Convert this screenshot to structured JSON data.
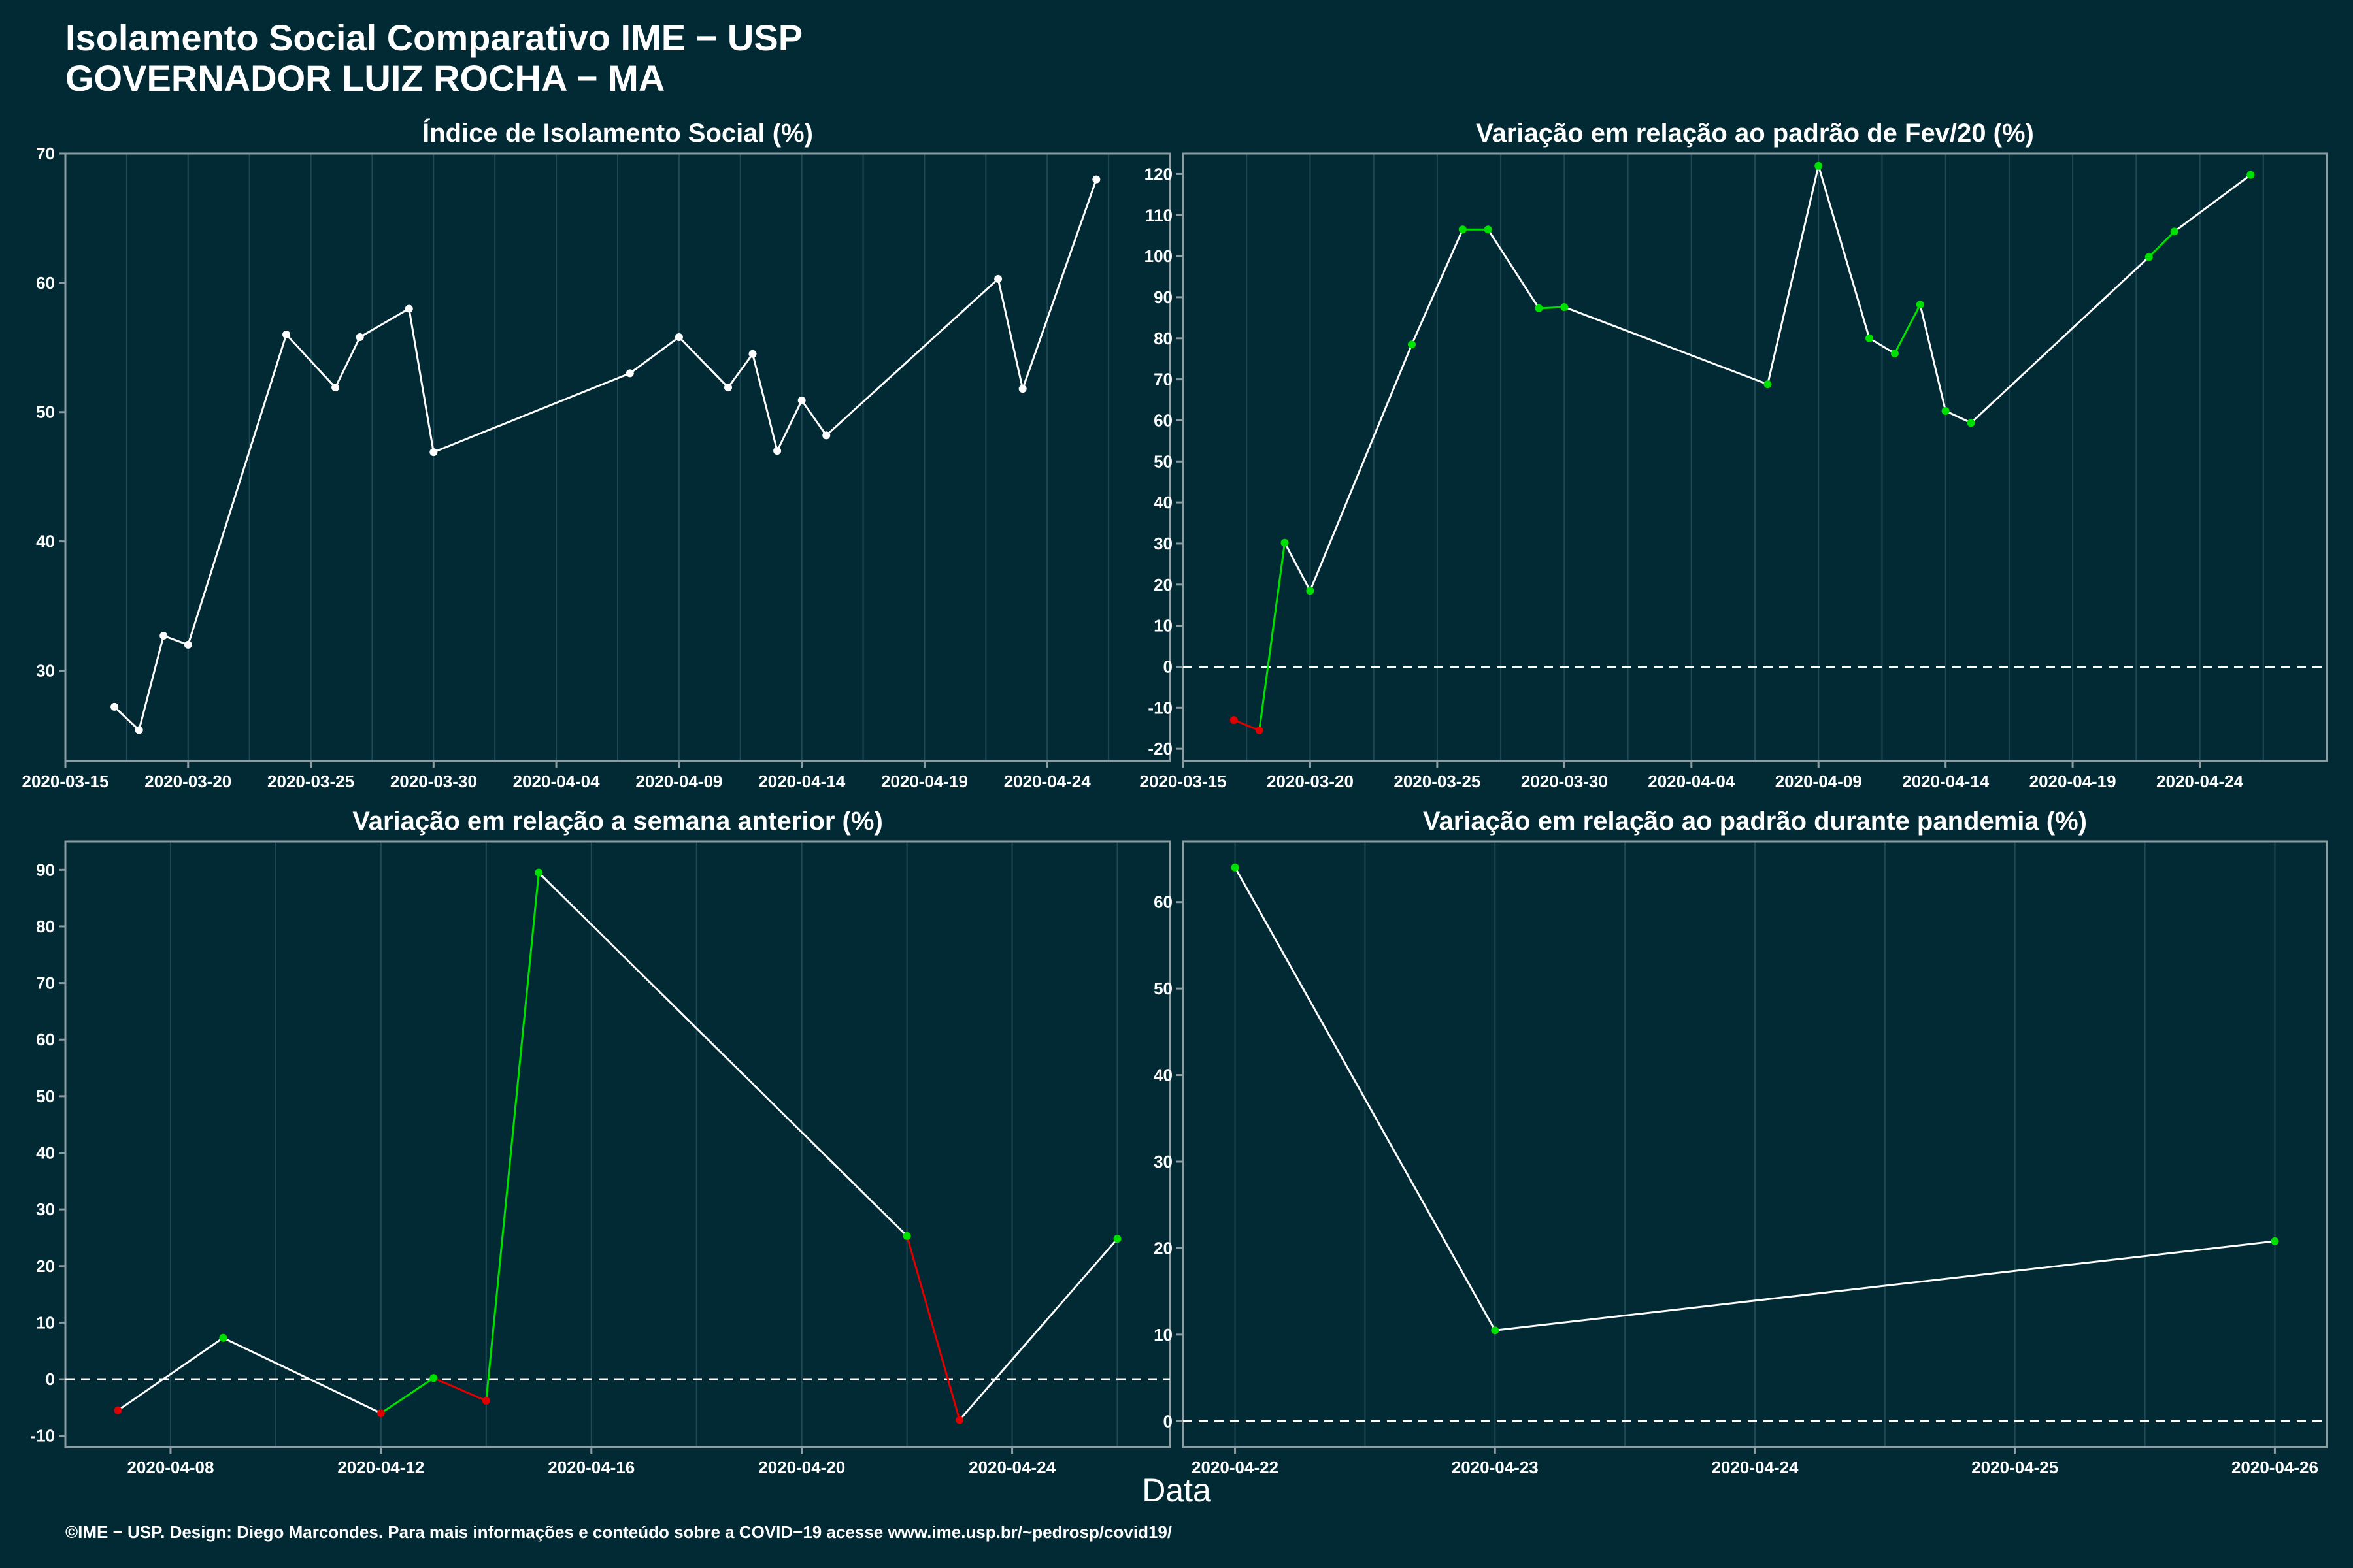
{
  "header": {
    "title_line1": "Isolamento Social Comparativo IME − USP",
    "title_line2": "GOVERNADOR LUIZ ROCHA − MA"
  },
  "x_axis_title": "Data",
  "footer": "©IME − USP. Design: Diego Marcondes. Para mais informações e conteúdo sobre a COVID−19 acesse www.ime.usp.br/~pedrosp/covid19/",
  "colors": {
    "background": "#022a35",
    "axis": "#8c9ca2",
    "line_neutral": "#ffffff",
    "increase": "#00e000",
    "decrease": "#e00000"
  },
  "chart_data": [
    {
      "type": "line",
      "title": "Índice de Isolamento Social (%)",
      "xlim": [
        "2020-03-15",
        "2020-04-29"
      ],
      "ylim": [
        23,
        70
      ],
      "x_ticks": [
        "2020-03-15",
        "2020-03-20",
        "2020-03-25",
        "2020-03-30",
        "2020-04-04",
        "2020-04-09",
        "2020-04-14",
        "2020-04-19",
        "2020-04-24"
      ],
      "y_ticks": [
        30,
        40,
        50,
        60,
        70
      ],
      "zero_line": false,
      "colored": false,
      "points": [
        [
          "2020-03-17",
          27.2
        ],
        [
          "2020-03-18",
          25.4
        ],
        [
          "2020-03-19",
          32.7
        ],
        [
          "2020-03-20",
          32.0
        ],
        [
          "2020-03-24",
          56.0
        ],
        [
          "2020-03-26",
          51.9
        ],
        [
          "2020-03-27",
          55.8
        ],
        [
          "2020-03-29",
          58.0
        ],
        [
          "2020-03-30",
          46.9
        ],
        [
          "2020-04-07",
          53.0
        ],
        [
          "2020-04-09",
          55.8
        ],
        [
          "2020-04-11",
          51.9
        ],
        [
          "2020-04-12",
          54.5
        ],
        [
          "2020-04-13",
          47.0
        ],
        [
          "2020-04-14",
          50.9
        ],
        [
          "2020-04-15",
          48.2
        ],
        [
          "2020-04-22",
          60.3
        ],
        [
          "2020-04-23",
          51.8
        ],
        [
          "2020-04-26",
          68.0
        ]
      ]
    },
    {
      "type": "line",
      "title": "Variação em relação ao padrão de Fev/20 (%)",
      "xlim": [
        "2020-03-15",
        "2020-04-29"
      ],
      "ylim": [
        -23,
        125
      ],
      "x_ticks": [
        "2020-03-15",
        "2020-03-20",
        "2020-03-25",
        "2020-03-30",
        "2020-04-04",
        "2020-04-09",
        "2020-04-14",
        "2020-04-19",
        "2020-04-24"
      ],
      "y_ticks": [
        -20,
        -10,
        0,
        10,
        20,
        30,
        40,
        50,
        60,
        70,
        80,
        90,
        100,
        110,
        120
      ],
      "zero_line": true,
      "colored": true,
      "points": [
        [
          "2020-03-17",
          -13
        ],
        [
          "2020-03-18",
          -15.5
        ],
        [
          "2020-03-19",
          30.2
        ],
        [
          "2020-03-20",
          18.5
        ],
        [
          "2020-03-24",
          78.5
        ],
        [
          "2020-03-26",
          106.5
        ],
        [
          "2020-03-27",
          106.5
        ],
        [
          "2020-03-29",
          87.3
        ],
        [
          "2020-03-30",
          87.6
        ],
        [
          "2020-04-07",
          68.8
        ],
        [
          "2020-04-09",
          122.0
        ],
        [
          "2020-04-11",
          80.0
        ],
        [
          "2020-04-12",
          76.3
        ],
        [
          "2020-04-13",
          88.2
        ],
        [
          "2020-04-14",
          62.3
        ],
        [
          "2020-04-15",
          59.4
        ],
        [
          "2020-04-22",
          99.8
        ],
        [
          "2020-04-23",
          106.0
        ],
        [
          "2020-04-26",
          119.8
        ]
      ]
    },
    {
      "type": "line",
      "title": "Variação em relação a semana anterior (%)",
      "xlim": [
        "2020-04-06",
        "2020-04-27"
      ],
      "ylim": [
        -12,
        95
      ],
      "x_ticks": [
        "2020-04-08",
        "2020-04-12",
        "2020-04-16",
        "2020-04-20",
        "2020-04-24"
      ],
      "y_ticks": [
        -10,
        0,
        10,
        20,
        30,
        40,
        50,
        60,
        70,
        80,
        90
      ],
      "zero_line": true,
      "colored": true,
      "points": [
        [
          "2020-04-07",
          -5.5
        ],
        [
          "2020-04-09",
          7.3
        ],
        [
          "2020-04-12",
          -6.0
        ],
        [
          "2020-04-13",
          0.2
        ],
        [
          "2020-04-14",
          -3.8
        ],
        [
          "2020-04-15",
          89.5
        ],
        [
          "2020-04-22",
          25.3
        ],
        [
          "2020-04-23",
          -7.2
        ],
        [
          "2020-04-26",
          24.8
        ]
      ]
    },
    {
      "type": "line",
      "title": "Variação em relação ao padrão durante pandemia (%)",
      "xlim": [
        "2020-04-21.8",
        "2020-04-26.2"
      ],
      "ylim": [
        -3,
        67
      ],
      "x_ticks": [
        "2020-04-22",
        "2020-04-23",
        "2020-04-24",
        "2020-04-25",
        "2020-04-26"
      ],
      "y_ticks": [
        0,
        10,
        20,
        30,
        40,
        50,
        60
      ],
      "zero_line": true,
      "colored": true,
      "points": [
        [
          "2020-04-22",
          64.0
        ],
        [
          "2020-04-23",
          10.5
        ],
        [
          "2020-04-26",
          20.8
        ]
      ]
    }
  ]
}
